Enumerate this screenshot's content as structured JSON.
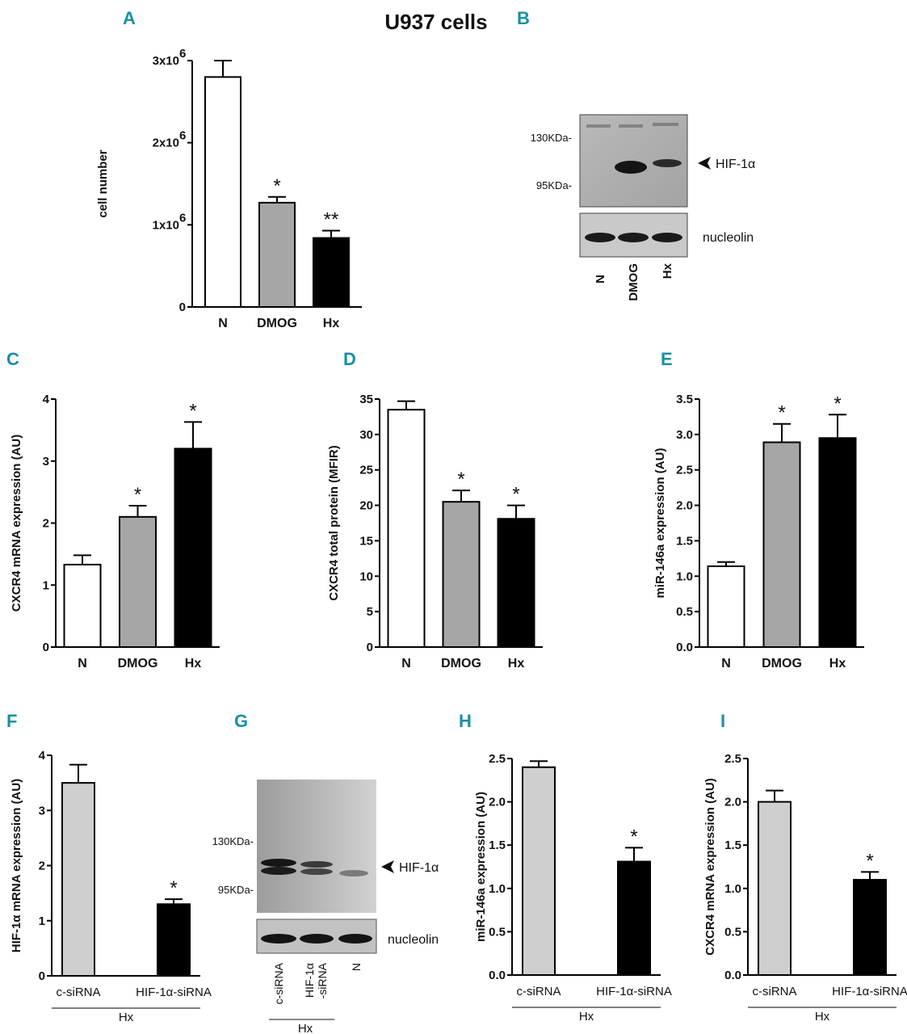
{
  "figure_title": "U937 cells",
  "colors": {
    "white_bar": "#ffffff",
    "grey_bar": "#a6a6a6",
    "light_bar": "#cfcfcf",
    "black_bar": "#000000",
    "panel_label": "#1b8fa3"
  },
  "chart_data": [
    {
      "panel": "A",
      "type": "bar",
      "title": "",
      "ylabel": "cell number",
      "categories": [
        "N",
        "DMOG",
        "Hx"
      ],
      "values": [
        2800000,
        1270000,
        840000
      ],
      "errors": [
        200000,
        70000,
        90000
      ],
      "ylim": [
        0,
        3000000
      ],
      "ticks": [
        0,
        1000000,
        2000000,
        3000000
      ],
      "tick_labels": [
        "0",
        "1x10",
        "2x10",
        "3x10"
      ],
      "tick_superscript": "6",
      "significance": [
        "",
        "*",
        "**"
      ],
      "fills": [
        "white_bar",
        "grey_bar",
        "black_bar"
      ]
    },
    {
      "panel": "C",
      "type": "bar",
      "ylabel": "CXCR4 mRNA expression (AU)",
      "categories": [
        "N",
        "DMOG",
        "Hx"
      ],
      "values": [
        1.33,
        2.1,
        3.2
      ],
      "errors": [
        0.15,
        0.18,
        0.43
      ],
      "ylim": [
        0,
        4
      ],
      "ticks": [
        0,
        1,
        2,
        3,
        4
      ],
      "tick_labels": [
        "0",
        "1",
        "2",
        "3",
        "4"
      ],
      "significance": [
        "",
        "*",
        "*"
      ],
      "fills": [
        "white_bar",
        "grey_bar",
        "black_bar"
      ]
    },
    {
      "panel": "D",
      "type": "bar",
      "ylabel": "CXCR4 total protein (MFIR)",
      "categories": [
        "N",
        "DMOG",
        "Hx"
      ],
      "values": [
        33.5,
        20.5,
        18.1
      ],
      "errors": [
        1.2,
        1.6,
        1.9
      ],
      "ylim": [
        0,
        35
      ],
      "ticks": [
        0,
        5,
        10,
        15,
        20,
        25,
        30,
        35
      ],
      "tick_labels": [
        "0",
        "5",
        "10",
        "15",
        "20",
        "25",
        "30",
        "35"
      ],
      "significance": [
        "",
        "*",
        "*"
      ],
      "fills": [
        "white_bar",
        "grey_bar",
        "black_bar"
      ]
    },
    {
      "panel": "E",
      "type": "bar",
      "ylabel": "miR-146a expression (AU)",
      "categories": [
        "N",
        "DMOG",
        "Hx"
      ],
      "values": [
        1.14,
        2.89,
        2.95
      ],
      "errors": [
        0.06,
        0.26,
        0.33
      ],
      "ylim": [
        0,
        3.5
      ],
      "ticks": [
        0,
        0.5,
        1,
        1.5,
        2,
        2.5,
        3,
        3.5
      ],
      "tick_labels": [
        "0.0",
        "0.5",
        "1.0",
        "1.5",
        "2.0",
        "2.5",
        "3.0",
        "3.5"
      ],
      "significance": [
        "",
        "*",
        "*"
      ],
      "fills": [
        "white_bar",
        "grey_bar",
        "black_bar"
      ]
    },
    {
      "panel": "F",
      "type": "bar",
      "ylabel": "HIF-1α mRNA expression (AU)",
      "categories": [
        "c-siRNA",
        "HIF-1α-siRNA"
      ],
      "group_label": "Hx",
      "values": [
        3.5,
        1.3
      ],
      "errors": [
        0.33,
        0.09
      ],
      "ylim": [
        0,
        4
      ],
      "ticks": [
        0,
        1,
        2,
        3,
        4
      ],
      "tick_labels": [
        "0",
        "1",
        "2",
        "3",
        "4"
      ],
      "significance": [
        "",
        "*"
      ],
      "fills": [
        "light_bar",
        "black_bar"
      ]
    },
    {
      "panel": "H",
      "type": "bar",
      "ylabel": "miR-146a expression (AU)",
      "categories": [
        "c-siRNA",
        "HIF-1α-siRNA"
      ],
      "group_label": "Hx",
      "values": [
        2.4,
        1.31
      ],
      "errors": [
        0.07,
        0.16
      ],
      "ylim": [
        0,
        2.5
      ],
      "ticks": [
        0,
        0.5,
        1,
        1.5,
        2,
        2.5
      ],
      "tick_labels": [
        "0.0",
        "0.5",
        "1.0",
        "1.5",
        "2.0",
        "2.5"
      ],
      "significance": [
        "",
        "*"
      ],
      "fills": [
        "light_bar",
        "black_bar"
      ]
    },
    {
      "panel": "I",
      "type": "bar",
      "ylabel": "CXCR4 mRNA expression (AU)",
      "categories": [
        "c-siRNA",
        "HIF-1α-siRNA"
      ],
      "group_label": "Hx",
      "values": [
        2.0,
        1.1
      ],
      "errors": [
        0.13,
        0.09
      ],
      "ylim": [
        0,
        2.5
      ],
      "ticks": [
        0,
        0.5,
        1,
        1.5,
        2,
        2.5
      ],
      "tick_labels": [
        "0.0",
        "0.5",
        "1.0",
        "1.5",
        "2.0",
        "2.5"
      ],
      "significance": [
        "",
        "*"
      ],
      "fills": [
        "light_bar",
        "black_bar"
      ]
    }
  ],
  "blot_B": {
    "panel": "B",
    "markers": [
      "130KDa-",
      "95KDa-"
    ],
    "band_label": "HIF-1α",
    "loading_label": "nucleolin",
    "lanes": [
      "N",
      "DMOG",
      "Hx"
    ]
  },
  "blot_G": {
    "panel": "G",
    "markers": [
      "130KDa-",
      "95KDa-"
    ],
    "band_label": "HIF-1α",
    "loading_label": "nucleolin",
    "lane1": "c-siRNA",
    "lane2_line1": "HIF-1α",
    "lane2_line2": "-siRNA",
    "lane3": "N",
    "group_label": "Hx"
  }
}
